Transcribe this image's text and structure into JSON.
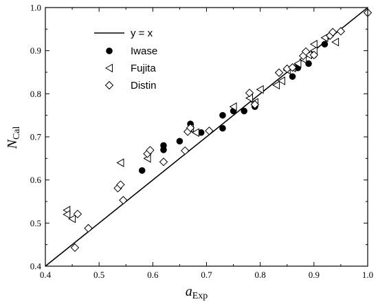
{
  "chart_data": {
    "type": "scatter",
    "xlabel": "a",
    "xlabel_sub": "Exp",
    "ylabel": "N",
    "ylabel_sub": "Cal",
    "xlim": [
      0.4,
      1.0
    ],
    "ylim": [
      0.4,
      1.0
    ],
    "xticks": [
      "0.4",
      "0.5",
      "0.6",
      "0.7",
      "0.8",
      "0.9",
      "1.0"
    ],
    "yticks": [
      "0.4",
      "0.5",
      "0.6",
      "0.7",
      "0.8",
      "0.9",
      "1.0"
    ],
    "grid": false,
    "legend_position": "top-left",
    "line": {
      "name": "y = x",
      "x": [
        0.4,
        1.0
      ],
      "y": [
        0.4,
        1.0
      ]
    },
    "series": [
      {
        "name": "Iwase",
        "marker": "filled-circle",
        "x": [
          0.58,
          0.62,
          0.62,
          0.65,
          0.67,
          0.67,
          0.69,
          0.73,
          0.73,
          0.75,
          0.77,
          0.79,
          0.86,
          0.87,
          0.89,
          0.9,
          0.92
        ],
        "y": [
          0.622,
          0.68,
          0.67,
          0.69,
          0.73,
          0.72,
          0.71,
          0.75,
          0.72,
          0.76,
          0.76,
          0.77,
          0.84,
          0.86,
          0.87,
          0.89,
          0.915
        ]
      },
      {
        "name": "Fujita",
        "marker": "left-triangle",
        "x": [
          0.44,
          0.44,
          0.45,
          0.54,
          0.59,
          0.59,
          0.67,
          0.68,
          0.75,
          0.78,
          0.79,
          0.8,
          0.83,
          0.84,
          0.85,
          0.86,
          0.87,
          0.88,
          0.89,
          0.9,
          0.9,
          0.92,
          0.94
        ],
        "y": [
          0.53,
          0.52,
          0.51,
          0.64,
          0.66,
          0.65,
          0.72,
          0.71,
          0.77,
          0.79,
          0.78,
          0.81,
          0.82,
          0.83,
          0.855,
          0.86,
          0.87,
          0.88,
          0.89,
          0.9,
          0.915,
          0.93,
          0.92
        ]
      },
      {
        "name": "Distin",
        "marker": "open-diamond",
        "x": [
          0.455,
          0.46,
          0.48,
          0.535,
          0.54,
          0.545,
          0.59,
          0.595,
          0.62,
          0.66,
          0.665,
          0.67,
          0.705,
          0.78,
          0.79,
          0.835,
          0.85,
          0.86,
          0.88,
          0.885,
          0.9,
          0.93,
          0.935,
          0.95,
          1.0
        ],
        "y": [
          0.443,
          0.521,
          0.488,
          0.581,
          0.589,
          0.553,
          0.661,
          0.669,
          0.642,
          0.668,
          0.712,
          0.721,
          0.714,
          0.802,
          0.775,
          0.849,
          0.858,
          0.861,
          0.888,
          0.898,
          0.89,
          0.935,
          0.943,
          0.945,
          0.988
        ]
      }
    ]
  }
}
